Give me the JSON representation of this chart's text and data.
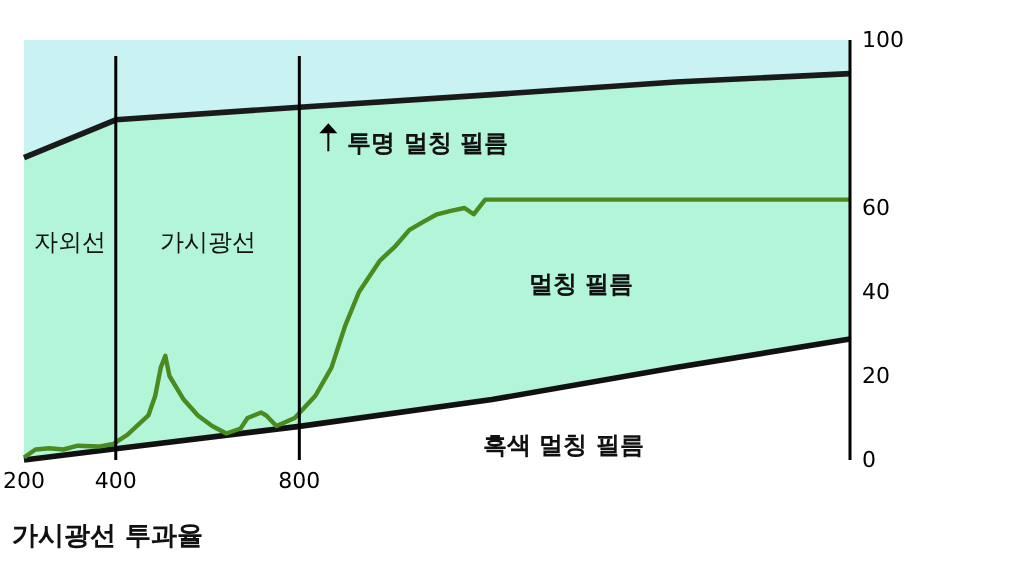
{
  "chart_data": {
    "type": "line",
    "title": "가시광선 투과율",
    "xlim": [
      200,
      2000
    ],
    "xticks": [
      200,
      400,
      800
    ],
    "ylim": [
      0,
      100
    ],
    "yticks": [
      0,
      20,
      40,
      60,
      100
    ],
    "grid": false,
    "series": [
      {
        "name": "투명 멀칭 필름",
        "type": "line",
        "color": "#1a1a1a",
        "x": [
          200,
          400,
          800,
          1220,
          1620,
          2000
        ],
        "values": [
          72,
          81,
          84,
          87,
          90,
          92
        ],
        "lower": [
          0,
          2.7,
          8,
          14.4,
          22,
          28.8
        ],
        "upper": [
          72,
          81,
          84,
          87,
          90,
          92
        ]
      },
      {
        "name": "흑색 멀칭 필름",
        "type": "line",
        "color": "#111111",
        "x": [
          200,
          400,
          800,
          1220,
          1620,
          2000
        ],
        "values": [
          0,
          2.7,
          8,
          14.4,
          22,
          28.8
        ]
      },
      {
        "name": "멀칭 필름",
        "color": "#4a8a1e",
        "x": [
          200,
          225,
          255,
          286,
          317,
          363,
          394,
          425,
          471,
          486,
          498,
          508,
          517,
          548,
          579,
          610,
          641,
          672,
          687,
          717,
          728,
          750,
          790,
          835,
          870,
          900,
          930,
          975,
          1010,
          1040,
          1070,
          1100,
          1130,
          1160,
          1180,
          1205,
          1250,
          2000
        ],
        "values": [
          0.6,
          2.5,
          2.8,
          2.5,
          3.4,
          3.2,
          3.8,
          6,
          10.6,
          15.3,
          22,
          24.8,
          20,
          14.4,
          10.6,
          8.1,
          6.3,
          7.5,
          10,
          11.3,
          10.6,
          8.1,
          10,
          15.3,
          22,
          32,
          40,
          47.4,
          51,
          54.8,
          56.7,
          58.5,
          59.3,
          60,
          58.5,
          62,
          62,
          62
        ]
      }
    ],
    "ref_lines": [
      {
        "axis": "x",
        "value": 400,
        "color": "#000000"
      },
      {
        "axis": "x",
        "value": 800,
        "color": "#000000"
      }
    ],
    "annotations": [
      "자외선",
      "가시광선"
    ]
  }
}
